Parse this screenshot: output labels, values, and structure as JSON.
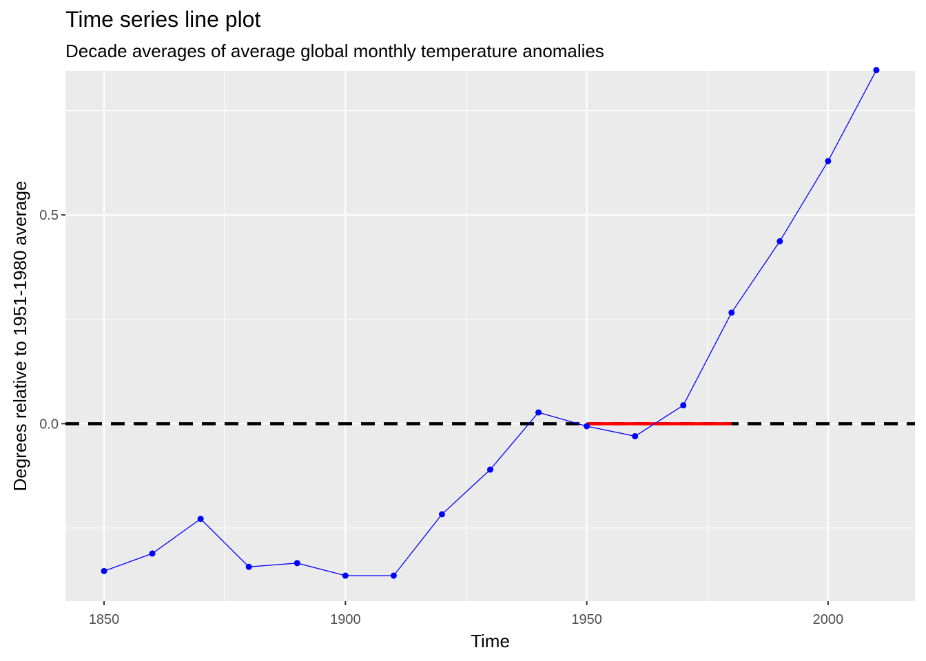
{
  "chart_data": {
    "type": "line",
    "title": "Time series line plot",
    "subtitle": "Decade averages of average global monthly temperature anomalies",
    "xlabel": "Time",
    "ylabel": "Degrees relative to 1951-1980 average",
    "xlim": [
      1842,
      2018
    ],
    "ylim": [
      -0.425,
      0.845
    ],
    "x_ticks": [
      1850,
      1900,
      1950,
      2000
    ],
    "y_ticks": [
      0.0,
      0.5
    ],
    "grid": true,
    "series": [
      {
        "x": [
          1850,
          1860,
          1870,
          1880,
          1890,
          1900,
          1910,
          1920,
          1930,
          1940,
          1950,
          1960,
          1970,
          1980,
          1990,
          2000,
          2010
        ],
        "y": [
          -0.353,
          -0.311,
          -0.228,
          -0.343,
          -0.334,
          -0.364,
          -0.364,
          -0.217,
          -0.11,
          0.027,
          -0.006,
          -0.03,
          0.044,
          0.266,
          0.437,
          0.629,
          0.847
        ],
        "color": "#0000ff"
      }
    ],
    "reference_line": {
      "y": 0.0,
      "style": "dashed",
      "color": "#000000"
    },
    "baseline_segment": {
      "x": [
        1950,
        1980
      ],
      "y": 0.0,
      "color": "#ff0000"
    },
    "colors": {
      "panel_background": "#ebebeb",
      "grid": "#ffffff",
      "series": "#0000ff",
      "reference": "#000000",
      "baseline": "#ff0000"
    }
  }
}
